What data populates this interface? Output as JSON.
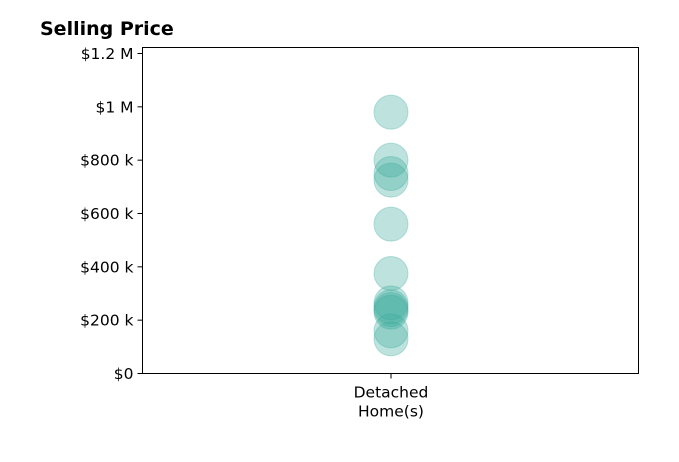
{
  "chart_data": {
    "type": "scatter",
    "title": "Selling Price",
    "xlabel": "",
    "ylabel": "",
    "categories": [
      [
        "Detached",
        "Home(s)"
      ]
    ],
    "ylim": [
      0,
      1200000
    ],
    "y_ticks": [
      {
        "value": 0,
        "label": "$0"
      },
      {
        "value": 200000,
        "label": "$200 k"
      },
      {
        "value": 400000,
        "label": "$400 k"
      },
      {
        "value": 600000,
        "label": "$600 k"
      },
      {
        "value": 800000,
        "label": "$800 k"
      },
      {
        "value": 1000000,
        "label": "$1 M"
      },
      {
        "value": 1200000,
        "label": "$1.2 M"
      }
    ],
    "series": [
      {
        "category_index": 0,
        "values": [
          980000,
          800000,
          750000,
          725000,
          560000,
          375000,
          265000,
          250000,
          240000,
          230000,
          160000,
          130000
        ]
      }
    ],
    "marker_color": "#3aaa9c",
    "marker_opacity": 0.33,
    "grid": false,
    "legend": "none"
  }
}
